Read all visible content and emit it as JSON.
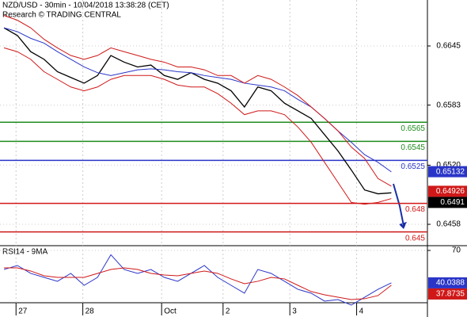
{
  "chart_data": [
    {
      "type": "line",
      "title": "NZD/USD - 30min - 10/04/2018 13:38:28 (CET)",
      "subtitle": "Research © TRADING CENTRAL",
      "x": [
        0,
        1,
        2,
        3,
        4,
        5,
        6,
        7,
        8,
        9,
        10,
        11,
        12,
        13,
        14,
        15,
        16,
        17,
        18,
        19,
        20,
        21,
        22,
        23,
        24,
        25,
        26,
        27,
        28,
        29
      ],
      "xlim": [
        -0.3,
        31.7
      ],
      "xticks": [
        {
          "value": 0.9,
          "label": "27"
        },
        {
          "value": 5.9,
          "label": "28"
        },
        {
          "value": 11.8,
          "label": "Oct"
        },
        {
          "value": 16.4,
          "label": "2"
        },
        {
          "value": 21.4,
          "label": "3"
        },
        {
          "value": 26.4,
          "label": "4"
        }
      ],
      "ylim": [
        0.64356,
        0.66932
      ],
      "yticks": [
        0.6645,
        0.6583,
        {
          "value": 0.652,
          "label": "0.6520"
        },
        0.6458
      ],
      "series": [
        {
          "color": "#000000",
          "values": [
            0.6664,
            0.6656,
            0.6639,
            0.6631,
            0.6618,
            0.6612,
            0.6606,
            0.6614,
            0.6635,
            0.6628,
            0.6623,
            0.6625,
            0.6614,
            0.661,
            0.6617,
            0.661,
            0.6606,
            0.6598,
            0.6581,
            0.6602,
            0.6598,
            0.6585,
            0.6577,
            0.6569,
            0.6552,
            0.6535,
            0.6515,
            0.6494,
            0.649,
            0.6491
          ]
        },
        {
          "color": "#2a35c8",
          "values": [
            0.6664,
            0.666,
            0.6653,
            0.6648,
            0.6639,
            0.6631,
            0.6623,
            0.6617,
            0.6614,
            0.6617,
            0.662,
            0.6621,
            0.662,
            0.6618,
            0.6617,
            0.6614,
            0.6612,
            0.661,
            0.6606,
            0.6604,
            0.6602,
            0.6598,
            0.6589,
            0.6581,
            0.6569,
            0.6556,
            0.6544,
            0.6531,
            0.6523,
            0.6513
          ]
        },
        {
          "color": "#d01818",
          "values": [
            0.6677,
            0.6672,
            0.6664,
            0.6652,
            0.6643,
            0.6635,
            0.6631,
            0.6635,
            0.6643,
            0.6639,
            0.6635,
            0.6631,
            0.6628,
            0.6623,
            0.6623,
            0.662,
            0.6614,
            0.6614,
            0.6606,
            0.6614,
            0.661,
            0.6602,
            0.6593,
            0.6581,
            0.6569,
            0.6556,
            0.6539,
            0.6527,
            0.6506,
            0.6498
          ]
        },
        {
          "color": "#d01818",
          "values": [
            0.6643,
            0.6639,
            0.6631,
            0.6618,
            0.661,
            0.6602,
            0.6598,
            0.6602,
            0.661,
            0.6614,
            0.6614,
            0.6614,
            0.661,
            0.6604,
            0.6602,
            0.6602,
            0.6595,
            0.6585,
            0.6573,
            0.6577,
            0.6577,
            0.6573,
            0.656,
            0.6544,
            0.6523,
            0.6502,
            0.6481,
            0.6479,
            0.6481,
            0.6485
          ]
        }
      ],
      "levels": [
        {
          "value": 0.6565,
          "color": "#1e8c1e"
        },
        {
          "value": 0.6545,
          "color": "#1e8c1e"
        },
        {
          "value": 0.6525,
          "color": "#2a35c8"
        },
        {
          "value": 0.648,
          "color": "#d01818"
        },
        {
          "value": 0.645,
          "color": "#d01818"
        }
      ],
      "tags": [
        {
          "value": 0.65132,
          "color": "#2a35c8"
        },
        {
          "value": 0.64926,
          "color": "#d01818"
        },
        {
          "value": 0.6491,
          "color": "#000000"
        }
      ]
    },
    {
      "type": "line",
      "title": "RSI14 - 9MA",
      "x": [
        0,
        1,
        2,
        3,
        4,
        5,
        6,
        7,
        8,
        9,
        10,
        11,
        12,
        13,
        14,
        15,
        16,
        17,
        18,
        19,
        20,
        21,
        22,
        23,
        24,
        25,
        26,
        27,
        28,
        29
      ],
      "xlim": [
        -0.3,
        31.7
      ],
      "ylim": [
        17.3,
        74.4
      ],
      "yticks": [
        70
      ],
      "series": [
        {
          "color": "#2a35c8",
          "values": [
            52.4,
            56.1,
            48.8,
            45.1,
            41.5,
            48.8,
            37.8,
            45.1,
            66,
            52.4,
            48.8,
            52.4,
            45.1,
            41.5,
            48.8,
            56.1,
            45.1,
            37.8,
            30.5,
            52.4,
            48.8,
            41.5,
            34.1,
            30.5,
            23.2,
            24.6,
            19.5,
            26.8,
            34.1,
            40.0388
          ]
        },
        {
          "color": "#d01818",
          "values": [
            53.9,
            53.9,
            51.0,
            46.6,
            45.1,
            45.1,
            45.1,
            48.8,
            52.4,
            53.9,
            52.4,
            48.8,
            47.3,
            46.6,
            48.8,
            51.0,
            48.8,
            43.7,
            39.3,
            41.5,
            45.1,
            43.7,
            37.8,
            32.0,
            29.0,
            26.8,
            24.6,
            25.4,
            28.3,
            37.8735
          ]
        }
      ],
      "tags": [
        {
          "value": 40.0388,
          "color": "#2a35c8"
        },
        {
          "value": 37.8735,
          "color": "#d01818"
        }
      ]
    }
  ]
}
